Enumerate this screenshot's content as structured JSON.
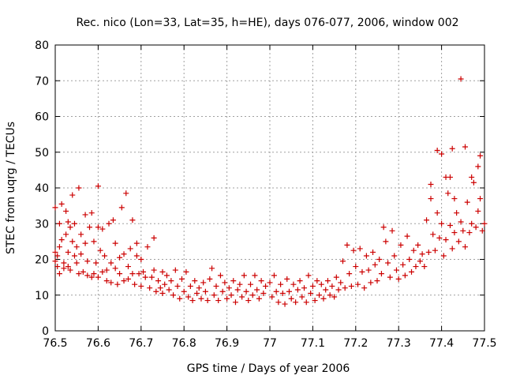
{
  "chart_data": {
    "type": "scatter",
    "title": "Rec. nico (Lon=33, Lat=35, h=HE), days 076-077, 2006, window 002",
    "xlabel": "GPS time / Days of year 2006",
    "ylabel": "STEC from uqrg / TECUs",
    "xlim": [
      76.5,
      77.5
    ],
    "ylim": [
      0,
      80
    ],
    "xticks": [
      76.5,
      76.6,
      76.7,
      76.8,
      76.9,
      77.0,
      77.1,
      77.2,
      77.3,
      77.4,
      77.5
    ],
    "xtick_labels": [
      "76.5",
      "76.6",
      "76.7",
      "76.8",
      "76.9",
      "77",
      "77.1",
      "77.2",
      "77.3",
      "77.4",
      "77.5"
    ],
    "yticks": [
      0,
      10,
      20,
      30,
      40,
      50,
      60,
      70,
      80
    ],
    "ytick_labels": [
      "0",
      "10",
      "20",
      "30",
      "40",
      "50",
      "60",
      "70",
      "80"
    ],
    "grid": true,
    "marker": "plus",
    "color": "#cc0000",
    "series": [
      {
        "name": "STEC",
        "points": [
          [
            76.5,
            34.5
          ],
          [
            76.5,
            22.0
          ],
          [
            76.5,
            19.5
          ],
          [
            76.505,
            21.0
          ],
          [
            76.505,
            18.0
          ],
          [
            76.51,
            30.0
          ],
          [
            76.51,
            23.5
          ],
          [
            76.51,
            16.0
          ],
          [
            76.515,
            35.5
          ],
          [
            76.515,
            25.5
          ],
          [
            76.52,
            19.0
          ],
          [
            76.52,
            17.5
          ],
          [
            76.525,
            33.5
          ],
          [
            76.525,
            27.0
          ],
          [
            76.53,
            30.5
          ],
          [
            76.53,
            22.0
          ],
          [
            76.53,
            18.0
          ],
          [
            76.535,
            29.0
          ],
          [
            76.535,
            17.0
          ],
          [
            76.54,
            38.0
          ],
          [
            76.54,
            25.0
          ],
          [
            76.545,
            30.0
          ],
          [
            76.545,
            21.0
          ],
          [
            76.55,
            23.5
          ],
          [
            76.55,
            19.0
          ],
          [
            76.555,
            40.0
          ],
          [
            76.555,
            16.0
          ],
          [
            76.56,
            27.0
          ],
          [
            76.56,
            21.5
          ],
          [
            76.565,
            16.5
          ],
          [
            76.57,
            32.5
          ],
          [
            76.57,
            24.5
          ],
          [
            76.575,
            19.5
          ],
          [
            76.575,
            15.5
          ],
          [
            76.58,
            29.0
          ],
          [
            76.585,
            33.0
          ],
          [
            76.585,
            15.0
          ],
          [
            76.59,
            25.0
          ],
          [
            76.59,
            16.0
          ],
          [
            76.595,
            19.0
          ],
          [
            76.6,
            40.5
          ],
          [
            76.6,
            29.0
          ],
          [
            76.6,
            15.0
          ],
          [
            76.605,
            22.5
          ],
          [
            76.61,
            28.5
          ],
          [
            76.61,
            16.5
          ],
          [
            76.615,
            21.0
          ],
          [
            76.62,
            17.0
          ],
          [
            76.62,
            14.0
          ],
          [
            76.625,
            30.0
          ],
          [
            76.63,
            19.0
          ],
          [
            76.63,
            13.5
          ],
          [
            76.635,
            31.0
          ],
          [
            76.64,
            24.5
          ],
          [
            76.64,
            17.5
          ],
          [
            76.645,
            13.0
          ],
          [
            76.65,
            20.5
          ],
          [
            76.65,
            16.0
          ],
          [
            76.655,
            34.5
          ],
          [
            76.66,
            21.5
          ],
          [
            76.66,
            14.0
          ],
          [
            76.665,
            38.5
          ],
          [
            76.67,
            18.0
          ],
          [
            76.67,
            14.5
          ],
          [
            76.675,
            23.0
          ],
          [
            76.68,
            31.0
          ],
          [
            76.68,
            16.0
          ],
          [
            76.685,
            13.0
          ],
          [
            76.69,
            24.5
          ],
          [
            76.69,
            21.0
          ],
          [
            76.695,
            16.0
          ],
          [
            76.7,
            20.0
          ],
          [
            76.7,
            12.5
          ],
          [
            76.705,
            16.5
          ],
          [
            76.71,
            15.0
          ],
          [
            76.715,
            23.5
          ],
          [
            76.72,
            12.0
          ],
          [
            76.725,
            15.0
          ],
          [
            76.73,
            26.0
          ],
          [
            76.73,
            17.0
          ],
          [
            76.735,
            11.0
          ],
          [
            76.74,
            14.0
          ],
          [
            76.745,
            12.0
          ],
          [
            76.75,
            16.5
          ],
          [
            76.75,
            10.5
          ],
          [
            76.755,
            13.0
          ],
          [
            76.76,
            15.5
          ],
          [
            76.765,
            11.5
          ],
          [
            76.77,
            14.0
          ],
          [
            76.775,
            10.0
          ],
          [
            76.78,
            17.0
          ],
          [
            76.785,
            12.5
          ],
          [
            76.79,
            9.0
          ],
          [
            76.795,
            14.5
          ],
          [
            76.8,
            11.0
          ],
          [
            76.805,
            16.5
          ],
          [
            76.81,
            9.5
          ],
          [
            76.815,
            12.5
          ],
          [
            76.82,
            8.5
          ],
          [
            76.825,
            14.0
          ],
          [
            76.83,
            10.5
          ],
          [
            76.835,
            12.0
          ],
          [
            76.84,
            9.0
          ],
          [
            76.845,
            13.5
          ],
          [
            76.85,
            11.0
          ],
          [
            76.855,
            8.5
          ],
          [
            76.86,
            14.5
          ],
          [
            76.865,
            17.5
          ],
          [
            76.87,
            10.0
          ],
          [
            76.875,
            12.5
          ],
          [
            76.88,
            8.5
          ],
          [
            76.885,
            15.5
          ],
          [
            76.89,
            11.0
          ],
          [
            76.895,
            13.5
          ],
          [
            76.9,
            9.0
          ],
          [
            76.905,
            12.0
          ],
          [
            76.91,
            10.0
          ],
          [
            76.915,
            14.0
          ],
          [
            76.92,
            8.0
          ],
          [
            76.925,
            11.5
          ],
          [
            76.93,
            13.0
          ],
          [
            76.935,
            9.5
          ],
          [
            76.94,
            15.5
          ],
          [
            76.945,
            11.0
          ],
          [
            76.95,
            8.5
          ],
          [
            76.955,
            13.0
          ],
          [
            76.96,
            10.0
          ],
          [
            76.965,
            15.5
          ],
          [
            76.97,
            11.5
          ],
          [
            76.975,
            9.0
          ],
          [
            76.98,
            14.0
          ],
          [
            76.985,
            10.5
          ],
          [
            76.99,
            12.5
          ],
          [
            77.0,
            13.5
          ],
          [
            77.005,
            9.5
          ],
          [
            77.01,
            15.5
          ],
          [
            77.015,
            11.0
          ],
          [
            77.02,
            8.0
          ],
          [
            77.025,
            13.0
          ],
          [
            77.03,
            10.5
          ],
          [
            77.035,
            7.5
          ],
          [
            77.04,
            14.5
          ],
          [
            77.045,
            11.0
          ],
          [
            77.05,
            9.0
          ],
          [
            77.055,
            13.0
          ],
          [
            77.06,
            8.0
          ],
          [
            77.065,
            11.5
          ],
          [
            77.07,
            14.0
          ],
          [
            77.075,
            9.5
          ],
          [
            77.08,
            12.0
          ],
          [
            77.085,
            8.0
          ],
          [
            77.09,
            15.5
          ],
          [
            77.095,
            10.5
          ],
          [
            77.1,
            12.5
          ],
          [
            77.105,
            8.5
          ],
          [
            77.11,
            14.0
          ],
          [
            77.115,
            10.0
          ],
          [
            77.12,
            13.0
          ],
          [
            77.125,
            9.0
          ],
          [
            77.13,
            11.5
          ],
          [
            77.135,
            14.0
          ],
          [
            77.14,
            10.0
          ],
          [
            77.145,
            12.5
          ],
          [
            77.15,
            9.5
          ],
          [
            77.155,
            15.0
          ],
          [
            77.16,
            11.5
          ],
          [
            77.165,
            13.5
          ],
          [
            77.17,
            19.5
          ],
          [
            77.175,
            12.0
          ],
          [
            77.18,
            24.0
          ],
          [
            77.185,
            16.0
          ],
          [
            77.19,
            12.5
          ],
          [
            77.195,
            22.5
          ],
          [
            77.2,
            18.0
          ],
          [
            77.205,
            13.0
          ],
          [
            77.21,
            23.0
          ],
          [
            77.215,
            16.5
          ],
          [
            77.22,
            12.0
          ],
          [
            77.225,
            21.0
          ],
          [
            77.23,
            17.0
          ],
          [
            77.235,
            13.5
          ],
          [
            77.24,
            22.0
          ],
          [
            77.245,
            18.5
          ],
          [
            77.25,
            14.0
          ],
          [
            77.255,
            20.0
          ],
          [
            77.26,
            16.0
          ],
          [
            77.265,
            29.0
          ],
          [
            77.27,
            25.0
          ],
          [
            77.275,
            19.0
          ],
          [
            77.28,
            15.0
          ],
          [
            77.285,
            28.0
          ],
          [
            77.29,
            21.0
          ],
          [
            77.295,
            17.0
          ],
          [
            77.3,
            14.5
          ],
          [
            77.305,
            24.0
          ],
          [
            77.31,
            18.5
          ],
          [
            77.315,
            15.5
          ],
          [
            77.32,
            26.5
          ],
          [
            77.325,
            20.0
          ],
          [
            77.33,
            16.5
          ],
          [
            77.335,
            22.5
          ],
          [
            77.34,
            18.0
          ],
          [
            77.345,
            24.0
          ],
          [
            77.35,
            19.5
          ],
          [
            77.355,
            21.5
          ],
          [
            77.36,
            18.0
          ],
          [
            77.365,
            31.0
          ],
          [
            77.37,
            22.0
          ],
          [
            77.375,
            41.0
          ],
          [
            77.375,
            37.0
          ],
          [
            77.38,
            27.0
          ],
          [
            77.385,
            22.5
          ],
          [
            77.39,
            50.5
          ],
          [
            77.39,
            33.0
          ],
          [
            77.395,
            26.0
          ],
          [
            77.4,
            49.5
          ],
          [
            77.4,
            30.0
          ],
          [
            77.405,
            21.0
          ],
          [
            77.41,
            43.0
          ],
          [
            77.41,
            25.5
          ],
          [
            77.415,
            38.5
          ],
          [
            77.42,
            43.0
          ],
          [
            77.42,
            29.5
          ],
          [
            77.425,
            51.0
          ],
          [
            77.425,
            23.0
          ],
          [
            77.43,
            37.0
          ],
          [
            77.43,
            27.5
          ],
          [
            77.435,
            33.0
          ],
          [
            77.44,
            25.0
          ],
          [
            77.445,
            70.5
          ],
          [
            77.445,
            30.5
          ],
          [
            77.45,
            28.0
          ],
          [
            77.455,
            51.5
          ],
          [
            77.455,
            23.5
          ],
          [
            77.46,
            36.0
          ],
          [
            77.465,
            27.5
          ],
          [
            77.47,
            43.0
          ],
          [
            77.47,
            30.0
          ],
          [
            77.475,
            41.5
          ],
          [
            77.48,
            29.0
          ],
          [
            77.485,
            46.0
          ],
          [
            77.485,
            33.5
          ],
          [
            77.49,
            49.0
          ],
          [
            77.49,
            37.0
          ],
          [
            77.495,
            28.0
          ],
          [
            77.5,
            30.0
          ]
        ]
      }
    ]
  }
}
